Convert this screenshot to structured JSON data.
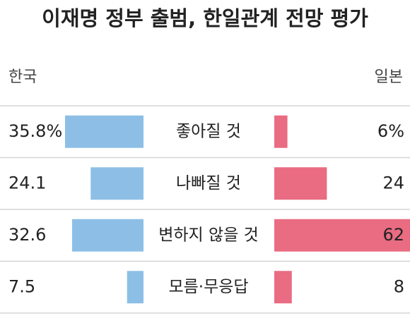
{
  "chart_data": {
    "type": "butterfly",
    "title": "이재명 정부 출범, 한일관계 전망 평가",
    "categories": [
      "좋아질 것",
      "나빠질 것",
      "변하지 않을 것",
      "모름·무응답"
    ],
    "series": [
      {
        "name": "한국",
        "color": "#8dbfe6",
        "side": "left",
        "values": [
          35.8,
          24.1,
          32.6,
          7.5
        ],
        "value_labels": [
          "35.8%",
          "24.1",
          "32.6",
          "7.5"
        ]
      },
      {
        "name": "일본",
        "color": "#e96c82",
        "side": "right",
        "values": [
          6,
          24,
          62,
          8
        ],
        "value_labels": [
          "6%",
          "24",
          "62",
          "8"
        ]
      }
    ]
  }
}
